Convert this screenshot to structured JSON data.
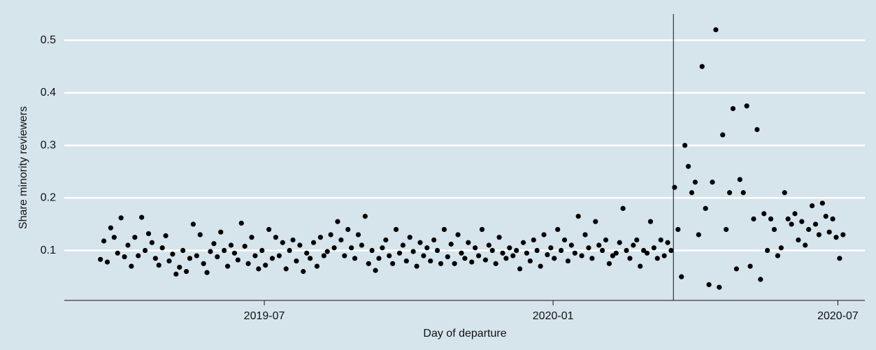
{
  "chart_data": {
    "type": "scatter",
    "x_label": "Day of departure",
    "y_label": "Share minority reviewers",
    "xlim": [
      2019.147,
      2020.544
    ],
    "xticks": [
      {
        "value": 2019.496,
        "label": "2019-07"
      },
      {
        "value": 2020,
        "label": "2020-01"
      },
      {
        "value": 2020.497,
        "label": "2020-07"
      }
    ],
    "ylim": [
      0.005,
      0.55
    ],
    "yticks": [
      0.1,
      0.2,
      0.3,
      0.4,
      0.5
    ],
    "grid": true,
    "vline": 2020.21,
    "series": [
      {
        "color": "#000000",
        "x": [
          2019.21,
          2019.216,
          2019.222,
          2019.228,
          2019.234,
          2019.24,
          2019.246,
          2019.252,
          2019.258,
          2019.264,
          2019.27,
          2019.276,
          2019.282,
          2019.288,
          2019.294,
          2019.3,
          2019.306,
          2019.312,
          2019.318,
          2019.324,
          2019.33,
          2019.336,
          2019.342,
          2019.348,
          2019.354,
          2019.36,
          2019.366,
          2019.372,
          2019.378,
          2019.384,
          2019.39,
          2019.396,
          2019.402,
          2019.408,
          2019.414,
          2019.42,
          2019.426,
          2019.432,
          2019.438,
          2019.444,
          2019.45,
          2019.456,
          2019.462,
          2019.468,
          2019.474,
          2019.48,
          2019.486,
          2019.492,
          2019.498,
          2019.504,
          2019.51,
          2019.516,
          2019.522,
          2019.528,
          2019.534,
          2019.54,
          2019.546,
          2019.552,
          2019.558,
          2019.564,
          2019.57,
          2019.576,
          2019.582,
          2019.588,
          2019.594,
          2019.6,
          2019.606,
          2019.612,
          2019.618,
          2019.624,
          2019.63,
          2019.636,
          2019.642,
          2019.648,
          2019.654,
          2019.66,
          2019.666,
          2019.672,
          2019.678,
          2019.684,
          2019.69,
          2019.696,
          2019.702,
          2019.708,
          2019.714,
          2019.72,
          2019.726,
          2019.732,
          2019.738,
          2019.744,
          2019.75,
          2019.756,
          2019.762,
          2019.768,
          2019.774,
          2019.78,
          2019.786,
          2019.792,
          2019.798,
          2019.804,
          2019.81,
          2019.816,
          2019.822,
          2019.828,
          2019.834,
          2019.84,
          2019.846,
          2019.852,
          2019.858,
          2019.864,
          2019.87,
          2019.876,
          2019.882,
          2019.888,
          2019.894,
          2019.9,
          2019.906,
          2019.912,
          2019.918,
          2019.924,
          2019.93,
          2019.936,
          2019.942,
          2019.948,
          2019.954,
          2019.96,
          2019.966,
          2019.972,
          2019.978,
          2019.984,
          2019.99,
          2019.996,
          2020.002,
          2020.008,
          2020.014,
          2020.02,
          2020.026,
          2020.032,
          2020.038,
          2020.044,
          2020.05,
          2020.056,
          2020.062,
          2020.068,
          2020.074,
          2020.08,
          2020.086,
          2020.092,
          2020.098,
          2020.104,
          2020.11,
          2020.116,
          2020.122,
          2020.128,
          2020.134,
          2020.14,
          2020.146,
          2020.152,
          2020.158,
          2020.164,
          2020.17,
          2020.176,
          2020.182,
          2020.188,
          2020.194,
          2020.2,
          2020.206,
          2020.212,
          2020.218,
          2020.224,
          2020.23,
          2020.236,
          2020.242,
          2020.248,
          2020.254,
          2020.26,
          2020.266,
          2020.272,
          2020.278,
          2020.284,
          2020.29,
          2020.296,
          2020.302,
          2020.308,
          2020.314,
          2020.32,
          2020.326,
          2020.332,
          2020.338,
          2020.344,
          2020.35,
          2020.356,
          2020.362,
          2020.368,
          2020.374,
          2020.38,
          2020.386,
          2020.392,
          2020.398,
          2020.404,
          2020.41,
          2020.416,
          2020.422,
          2020.428,
          2020.434,
          2020.44,
          2020.446,
          2020.452,
          2020.458,
          2020.464,
          2020.47,
          2020.476,
          2020.482,
          2020.488,
          2020.494,
          2020.5,
          2020.506
        ],
        "values": [
          0.083,
          0.118,
          0.078,
          0.143,
          0.125,
          0.095,
          0.162,
          0.088,
          0.11,
          0.07,
          0.125,
          0.09,
          0.163,
          0.1,
          0.132,
          0.115,
          0.085,
          0.072,
          0.105,
          0.128,
          0.08,
          0.093,
          0.055,
          0.068,
          0.1,
          0.06,
          0.085,
          0.15,
          0.09,
          0.13,
          0.075,
          0.058,
          0.098,
          0.113,
          0.088,
          0.135,
          0.1,
          0.07,
          0.11,
          0.095,
          0.082,
          0.152,
          0.108,
          0.075,
          0.125,
          0.09,
          0.065,
          0.1,
          0.072,
          0.14,
          0.085,
          0.125,
          0.09,
          0.115,
          0.065,
          0.1,
          0.12,
          0.08,
          0.11,
          0.06,
          0.095,
          0.085,
          0.115,
          0.07,
          0.125,
          0.09,
          0.098,
          0.13,
          0.105,
          0.155,
          0.12,
          0.09,
          0.14,
          0.105,
          0.085,
          0.13,
          0.11,
          0.165,
          0.075,
          0.1,
          0.062,
          0.085,
          0.105,
          0.12,
          0.09,
          0.075,
          0.14,
          0.095,
          0.11,
          0.08,
          0.125,
          0.098,
          0.07,
          0.115,
          0.09,
          0.105,
          0.08,
          0.12,
          0.1,
          0.075,
          0.14,
          0.088,
          0.112,
          0.075,
          0.13,
          0.095,
          0.085,
          0.115,
          0.078,
          0.105,
          0.09,
          0.14,
          0.082,
          0.11,
          0.1,
          0.075,
          0.125,
          0.095,
          0.085,
          0.105,
          0.09,
          0.1,
          0.065,
          0.115,
          0.095,
          0.08,
          0.12,
          0.1,
          0.07,
          0.13,
          0.092,
          0.105,
          0.085,
          0.14,
          0.1,
          0.12,
          0.08,
          0.11,
          0.095,
          0.165,
          0.09,
          0.13,
          0.105,
          0.085,
          0.155,
          0.11,
          0.1,
          0.12,
          0.075,
          0.09,
          0.095,
          0.115,
          0.18,
          0.1,
          0.085,
          0.11,
          0.12,
          0.07,
          0.1,
          0.095,
          0.155,
          0.105,
          0.085,
          0.12,
          0.09,
          0.115,
          0.1,
          0.22,
          0.14,
          0.05,
          0.3,
          0.26,
          0.21,
          0.23,
          0.13,
          0.45,
          0.18,
          0.035,
          0.23,
          0.52,
          0.03,
          0.32,
          0.14,
          0.21,
          0.37,
          0.065,
          0.235,
          0.21,
          0.375,
          0.07,
          0.16,
          0.33,
          0.045,
          0.17,
          0.1,
          0.16,
          0.14,
          0.09,
          0.105,
          0.21,
          0.16,
          0.15,
          0.17,
          0.12,
          0.155,
          0.11,
          0.14,
          0.185,
          0.15,
          0.13,
          0.19,
          0.165,
          0.135,
          0.16,
          0.125,
          0.085,
          0.13
        ]
      }
    ]
  }
}
